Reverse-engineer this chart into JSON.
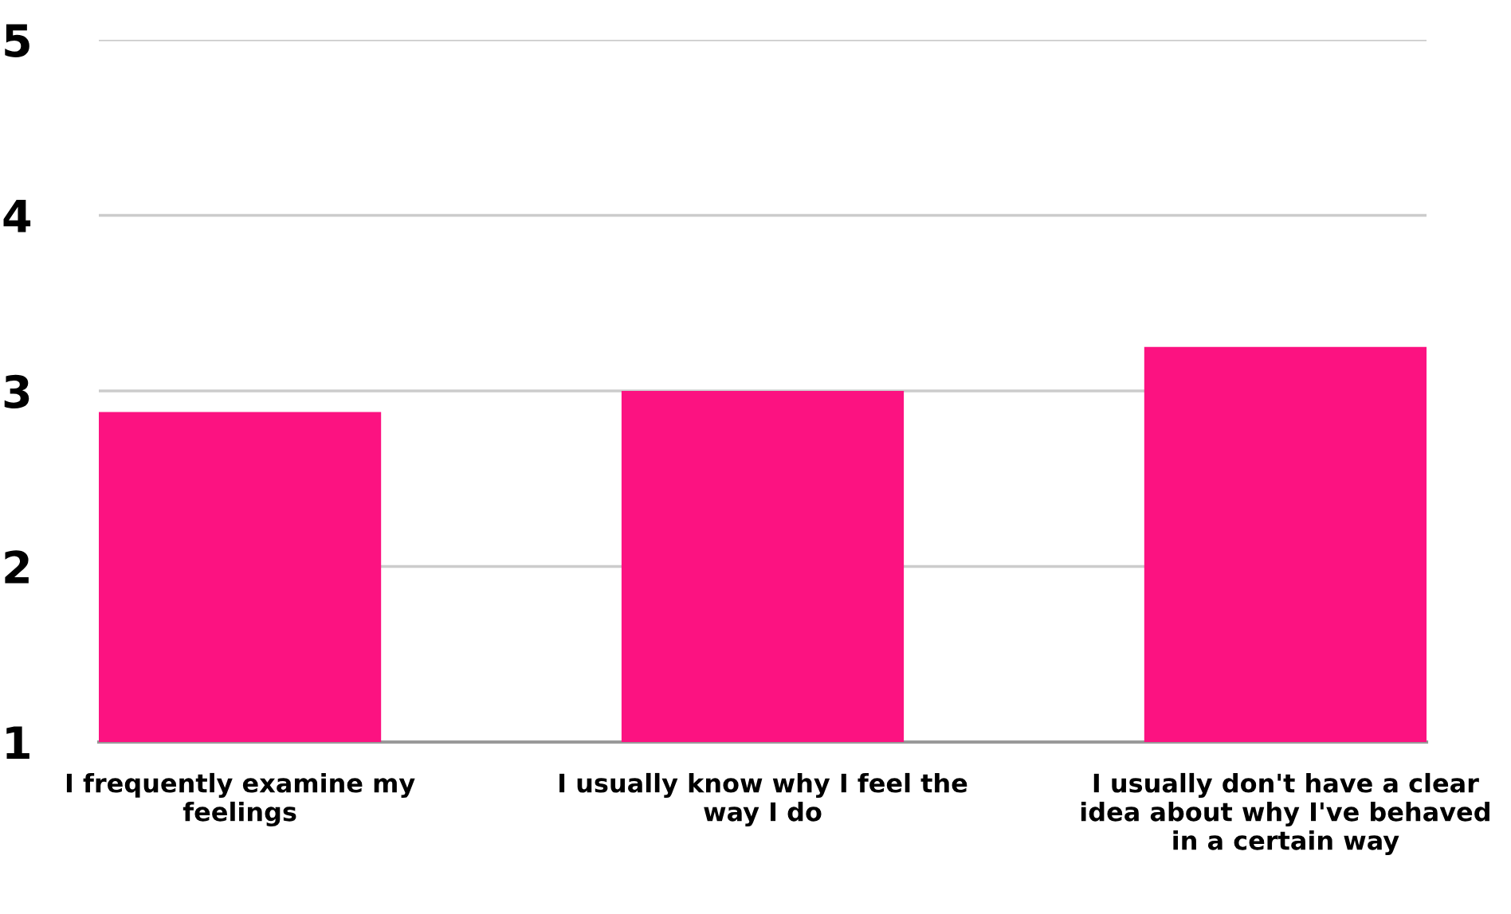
{
  "chart_data": {
    "type": "bar",
    "categories": [
      "I frequently examine my\nfeelings",
      "I usually know why I feel the\nway I do",
      "I usually don't have a clear\nidea about why I've behaved\nin a certain way"
    ],
    "values": [
      2.88,
      3.0,
      3.25
    ],
    "color": "#fc1281",
    "ylim": [
      1,
      5
    ],
    "yticks": [
      1,
      2,
      3,
      4,
      5
    ],
    "grid": "y"
  }
}
